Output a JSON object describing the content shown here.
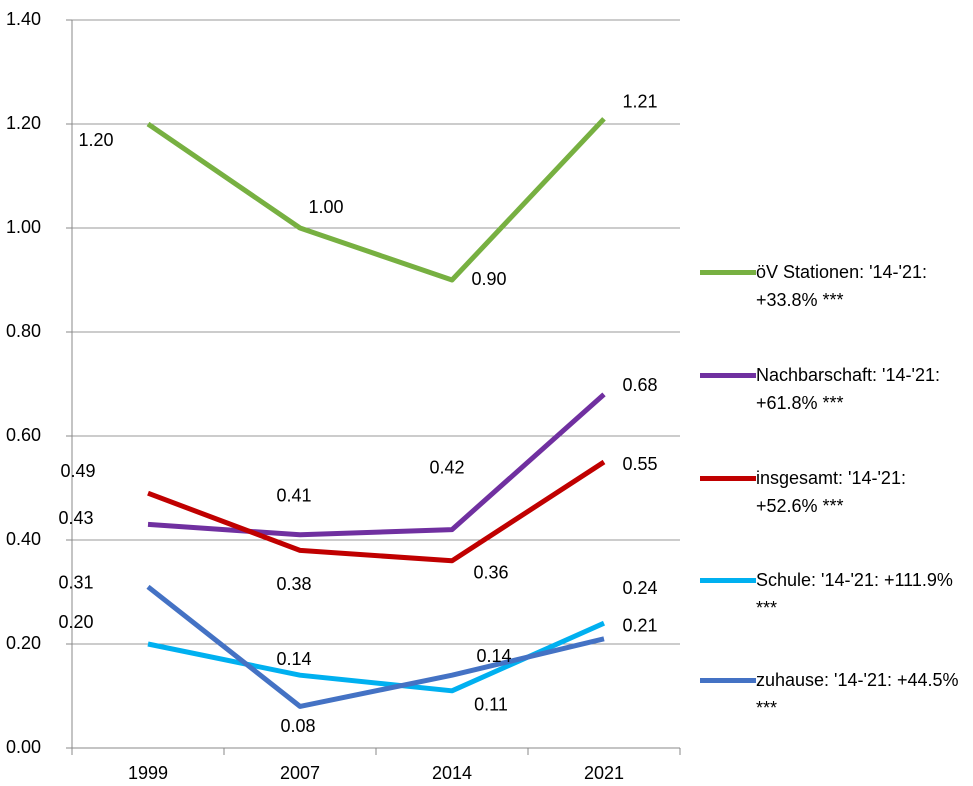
{
  "chart_data": {
    "type": "line",
    "categories": [
      "1999",
      "2007",
      "2014",
      "2021"
    ],
    "series": [
      {
        "name": "öV Stationen: '14-'21: +33.8% ***",
        "color": "#77b041",
        "values": [
          1.2,
          1.0,
          0.9,
          1.21
        ],
        "value_labels": [
          "1.20",
          "1.00",
          "0.90",
          "1.21"
        ]
      },
      {
        "name": "Nachbarschaft: '14-'21: +61.8% ***",
        "color": "#7030a0",
        "values": [
          0.43,
          0.41,
          0.42,
          0.68
        ],
        "value_labels": [
          "0.43",
          "0.41",
          "0.42",
          "0.68"
        ]
      },
      {
        "name": "insgesamt: '14-'21: +52.6% ***",
        "color": "#c00000",
        "values": [
          0.49,
          0.38,
          0.36,
          0.55
        ],
        "value_labels": [
          "0.49",
          "0.38",
          "0.36",
          "0.55"
        ]
      },
      {
        "name": "Schule: '14-'21: +111.9% ***",
        "color": "#00b0f0",
        "values": [
          0.2,
          0.14,
          0.11,
          0.24
        ],
        "value_labels": [
          "0.20",
          "0.14",
          "0.11",
          "0.24"
        ]
      },
      {
        "name": "zuhause: '14-'21: +44.5% ***",
        "color": "#4472c4",
        "values": [
          0.31,
          0.08,
          0.14,
          0.21
        ],
        "value_labels": [
          "0.31",
          "0.08",
          "0.14",
          "0.21"
        ]
      }
    ],
    "ylim": [
      0,
      1.4
    ],
    "yticks": [
      {
        "value": 0,
        "label": "0.00"
      },
      {
        "value": 0.2,
        "label": "0.20"
      },
      {
        "value": 0.4,
        "label": "0.40"
      },
      {
        "value": 0.6,
        "label": "0.60"
      },
      {
        "value": 0.8,
        "label": "0.80"
      },
      {
        "value": 1.0,
        "label": "1.00"
      },
      {
        "value": 1.2,
        "label": "1.20"
      },
      {
        "value": 1.4,
        "label": "1.40"
      }
    ],
    "grid": true,
    "legend": "right"
  }
}
